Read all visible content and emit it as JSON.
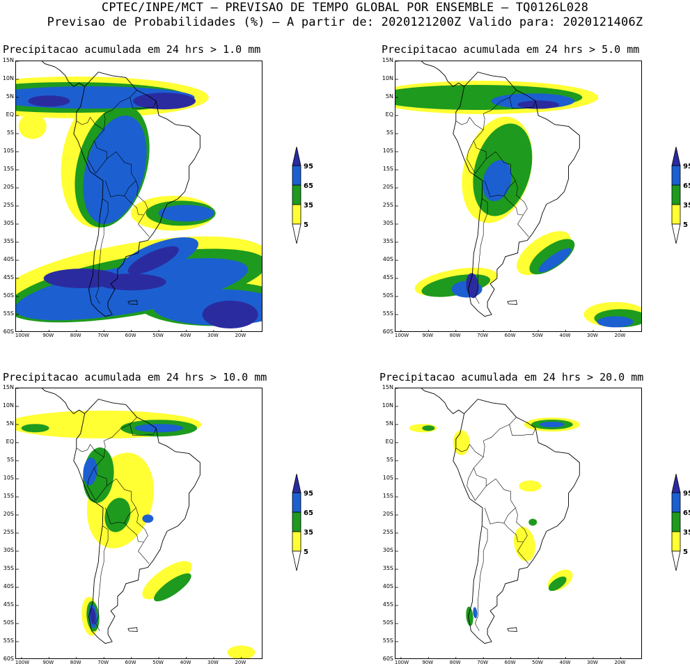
{
  "header": {
    "line1": "CPTEC/INPE/MCT – PREVISAO DE TEMPO GLOBAL POR ENSEMBLE – TQ0126L028",
    "line2": "Previsao de Probabilidades (%) –  A partir de: 2020121200Z  Valido para: 2020121406Z"
  },
  "panels": [
    {
      "title": "Precipitacao acumulada em 24 hrs > 1.0 mm",
      "threshold_mm": 1.0
    },
    {
      "title": "Precipitacao acumulada em 24 hrs > 5.0 mm",
      "threshold_mm": 5.0
    },
    {
      "title": "Precipitacao acumulada em 24 hrs > 10.0 mm",
      "threshold_mm": 10.0
    },
    {
      "title": "Precipitacao acumulada em 24 hrs > 20.0 mm",
      "threshold_mm": 20.0
    }
  ],
  "lat_labels": [
    "15N",
    "10N",
    "5N",
    "EQ",
    "5S",
    "10S",
    "15S",
    "20S",
    "25S",
    "30S",
    "35S",
    "40S",
    "45S",
    "50S",
    "55S",
    "60S"
  ],
  "lon_labels": [
    "100W",
    "90W",
    "80W",
    "70W",
    "60W",
    "50W",
    "40W",
    "30W",
    "20W"
  ],
  "colorbar": {
    "labels": [
      "95",
      "65",
      "35",
      "5"
    ],
    "colors": {
      "c95": "#2b2ba0",
      "c65": "#1c5fd0",
      "c35": "#1e9a1e",
      "c5": "#ffff33",
      "low": "#ffffff"
    }
  }
}
